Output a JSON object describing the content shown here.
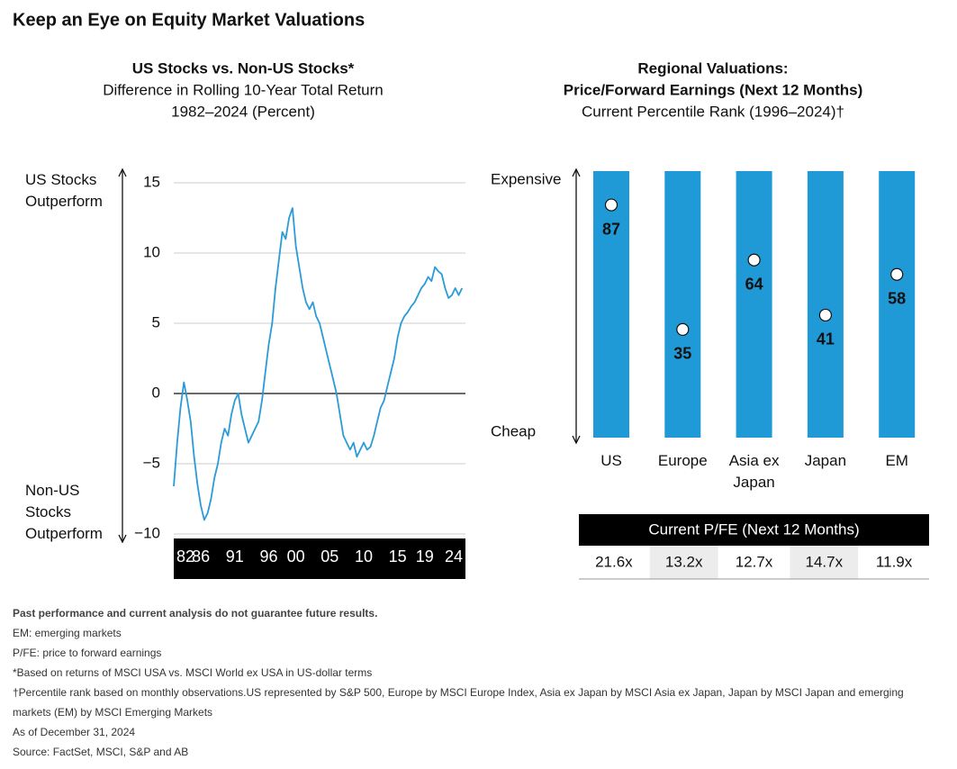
{
  "title": "Keep an Eye on Equity Market Valuations",
  "chart_data": [
    {
      "type": "line",
      "title": "US Stocks vs. Non-US Stocks*",
      "subtitle": [
        "Difference in Rolling 10-Year Total Return",
        "1982–2024 (Percent)"
      ],
      "y_label_top": "US Stocks Outperform",
      "y_label_bottom": "Non-US Stocks Outperform",
      "color": "#2b9bd8",
      "x": [
        1982,
        1982.5,
        1983,
        1983.5,
        1984,
        1984.5,
        1985,
        1985.5,
        1986,
        1986.5,
        1987,
        1987.5,
        1988,
        1988.5,
        1989,
        1989.5,
        1990,
        1990.5,
        1991,
        1991.5,
        1992,
        1992.5,
        1993,
        1993.5,
        1994,
        1994.5,
        1995,
        1995.5,
        1996,
        1996.5,
        1997,
        1997.5,
        1998,
        1998.5,
        1999,
        1999.5,
        2000,
        2000.5,
        2001,
        2001.5,
        2002,
        2002.5,
        2003,
        2003.5,
        2004,
        2004.5,
        2005,
        2005.5,
        2006,
        2006.5,
        2007,
        2007.5,
        2008,
        2008.5,
        2009,
        2009.5,
        2010,
        2010.5,
        2011,
        2011.5,
        2012,
        2012.5,
        2013,
        2013.5,
        2014,
        2014.5,
        2015,
        2015.5,
        2016,
        2016.5,
        2017,
        2017.5,
        2018,
        2018.5,
        2019,
        2019.5,
        2020,
        2020.5,
        2021,
        2021.5,
        2022,
        2022.5,
        2023,
        2023.5,
        2024,
        2024.5
      ],
      "values": [
        -6.6,
        -3.5,
        -1.0,
        0.8,
        -0.5,
        -2.0,
        -4.5,
        -6.5,
        -8.0,
        -9.0,
        -8.5,
        -7.5,
        -6.0,
        -5.0,
        -3.5,
        -2.5,
        -3.0,
        -1.5,
        -0.5,
        0.0,
        -1.5,
        -2.5,
        -3.5,
        -3.0,
        -2.5,
        -2.0,
        -0.5,
        1.5,
        3.5,
        5.0,
        7.5,
        9.5,
        11.5,
        11.0,
        12.5,
        13.2,
        10.5,
        9.0,
        7.5,
        6.5,
        6.0,
        6.5,
        5.5,
        5.0,
        4.0,
        3.0,
        2.0,
        1.0,
        0.0,
        -1.5,
        -3.0,
        -3.5,
        -4.0,
        -3.5,
        -4.5,
        -4.0,
        -3.5,
        -4.0,
        -3.8,
        -3.0,
        -2.0,
        -1.0,
        -0.5,
        0.5,
        1.5,
        2.5,
        4.0,
        5.0,
        5.5,
        5.8,
        6.2,
        6.5,
        7.0,
        7.5,
        7.8,
        8.3,
        8.0,
        9.0,
        8.7,
        8.5,
        7.5,
        6.8,
        7.0,
        7.5,
        7.0,
        7.5
      ],
      "xlim": [
        1982,
        2025
      ],
      "xticks": [
        {
          "value": 1982,
          "label": "82"
        },
        {
          "value": 1986,
          "label": "86"
        },
        {
          "value": 1991,
          "label": "91"
        },
        {
          "value": 1996,
          "label": "96"
        },
        {
          "value": 2000,
          "label": "00"
        },
        {
          "value": 2005,
          "label": "05"
        },
        {
          "value": 2010,
          "label": "10"
        },
        {
          "value": 2015,
          "label": "15"
        },
        {
          "value": 2019,
          "label": "19"
        },
        {
          "value": 2024,
          "label": "24"
        }
      ],
      "ylim": [
        -10,
        15
      ],
      "yticks": [
        {
          "value": -10,
          "label": "−10"
        },
        {
          "value": -5,
          "label": "−5"
        },
        0,
        5,
        10,
        15
      ],
      "grid": true
    },
    {
      "type": "dot",
      "title": [
        "Regional Valuations:",
        "Price/Forward Earnings (Next 12 Months)"
      ],
      "subtitle": "Current Percentile Rank (1996–2024)†",
      "y_label_top": "Expensive",
      "y_label_bottom": "Cheap",
      "categories": [
        "US",
        "Europe",
        "Asia ex Japan",
        "Japan",
        "EM"
      ],
      "values": [
        87,
        35,
        64,
        41,
        58
      ],
      "color": "#1f9ad6",
      "dot_color": "#ffffff",
      "ylim": [
        0,
        100
      ]
    }
  ],
  "table": {
    "header": "Current P/FE (Next 12 Months)",
    "cells": [
      "21.6x",
      "13.2x",
      "12.7x",
      "14.7x",
      "11.9x"
    ]
  },
  "footnotes": [
    "Past performance and current analysis do not guarantee future results.",
    "EM: emerging markets",
    "P/FE: price to forward earnings",
    "*Based on returns of MSCI USA vs. MSCI World ex USA in US-dollar terms",
    "†Percentile rank based on monthly observations.US represented by S&P 500, Europe by MSCI Europe Index, Asia ex Japan by MSCI Asia ex Japan, Japan by MSCI Japan and emerging markets (EM) by MSCI Emerging Markets",
    "As of December 31, 2024",
    "Source: FactSet, MSCI, S&P and AB"
  ]
}
